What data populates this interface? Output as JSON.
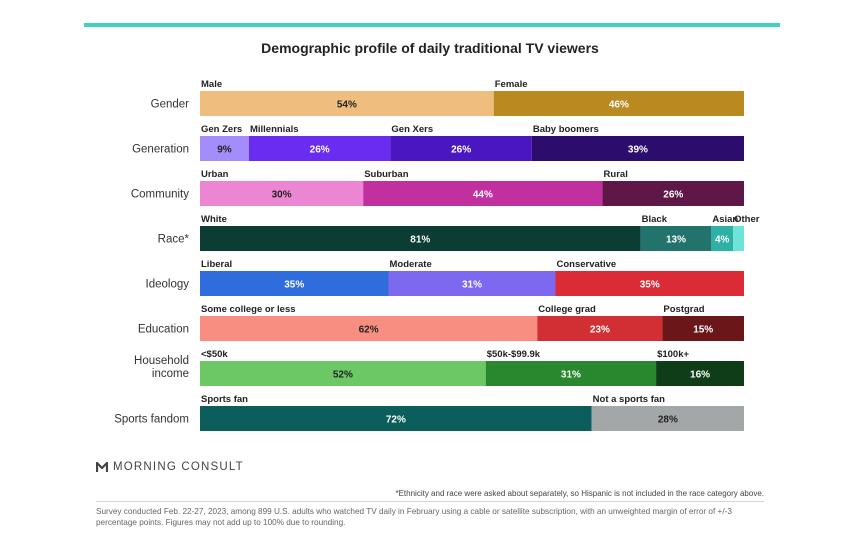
{
  "title": "Demographic profile of daily traditional TV viewers",
  "brand": "MORNING CONSULT",
  "footnote": "*Ethnicity and race were asked about separately, so Hispanic is not included in the race category above.",
  "source": "Survey conducted Feb. 22-27, 2023, among 899 U.S. adults who watched TV daily in February using a cable or satellite subscription, with an unweighted margin of error of +/-3 percentage points. Figures may not add up to 100% due to rounding.",
  "colors": {
    "accent_bar": "#3ed2c3"
  },
  "chart_data": {
    "type": "bar",
    "stacked": true,
    "orientation": "horizontal",
    "value_unit": "%",
    "groups": [
      {
        "category": "Gender",
        "segments": [
          {
            "label": "Male",
            "value": 54,
            "color": "#efbe7e"
          },
          {
            "label": "Female",
            "value": 46,
            "color": "#ba8a21"
          }
        ]
      },
      {
        "category": "Generation",
        "segments": [
          {
            "label": "Gen Zers",
            "value": 9,
            "color": "#a48dfa"
          },
          {
            "label": "Millennials",
            "value": 26,
            "color": "#6a2cf0"
          },
          {
            "label": "Gen Xers",
            "value": 26,
            "color": "#4a16c0"
          },
          {
            "label": "Baby boomers",
            "value": 39,
            "color": "#2c0d6e"
          }
        ]
      },
      {
        "category": "Community",
        "segments": [
          {
            "label": "Urban",
            "value": 30,
            "color": "#ec86d2"
          },
          {
            "label": "Suburban",
            "value": 44,
            "color": "#c22f9f"
          },
          {
            "label": "Rural",
            "value": 26,
            "color": "#5e1746"
          }
        ]
      },
      {
        "category": "Race*",
        "segments": [
          {
            "label": "White",
            "value": 81,
            "color": "#0b3d35"
          },
          {
            "label": "Black",
            "value": 13,
            "color": "#21736b"
          },
          {
            "label": "Asian",
            "value": 4,
            "color": "#2eb1a5"
          },
          {
            "label": "Other",
            "value": null,
            "color": "#6ee3d7"
          }
        ]
      },
      {
        "category": "Ideology",
        "segments": [
          {
            "label": "Liberal",
            "value": 35,
            "color": "#2f6cdc"
          },
          {
            "label": "Moderate",
            "value": 31,
            "color": "#7c69f0"
          },
          {
            "label": "Conservative",
            "value": 35,
            "color": "#da2b37"
          }
        ]
      },
      {
        "category": "Education",
        "segments": [
          {
            "label": "Some college or less",
            "value": 62,
            "color": "#f88e82"
          },
          {
            "label": "College grad",
            "value": 23,
            "color": "#d22f35"
          },
          {
            "label": "Postgrad",
            "value": 15,
            "color": "#6b1618"
          }
        ]
      },
      {
        "category": "Household income",
        "segments": [
          {
            "label": "<$50k",
            "value": 52,
            "color": "#6cc765"
          },
          {
            "label": "$50k-$99.9k",
            "value": 31,
            "color": "#29872e"
          },
          {
            "label": "$100k+",
            "value": 16,
            "color": "#0e3d18"
          }
        ]
      },
      {
        "category": "Sports fandom",
        "segments": [
          {
            "label": "Sports fan",
            "value": 72,
            "color": "#0b5e5b"
          },
          {
            "label": "Not a sports fan",
            "value": 28,
            "color": "#a3a7a7"
          }
        ]
      }
    ]
  }
}
